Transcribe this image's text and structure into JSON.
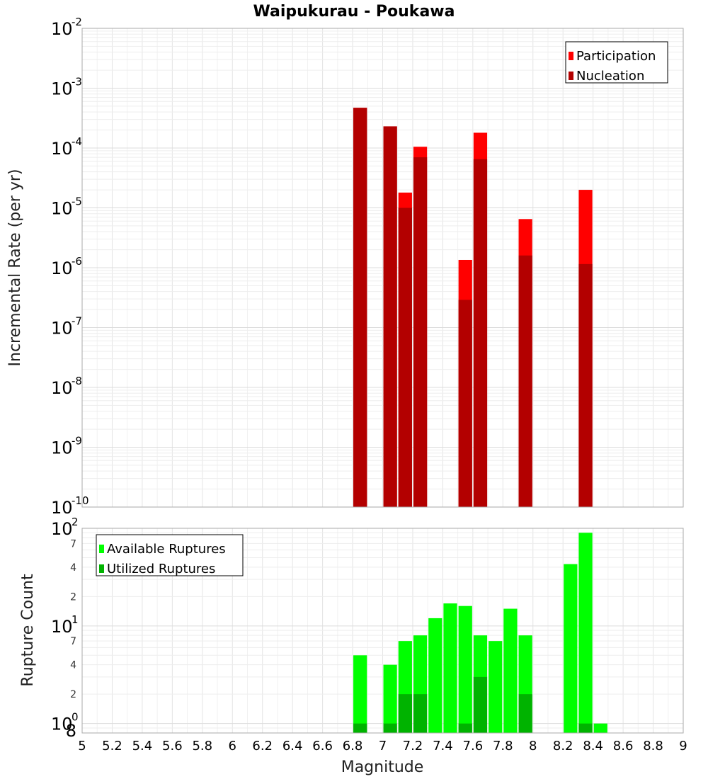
{
  "chart_data": [
    {
      "type": "bar",
      "title": "Waipukurau - Poukawa",
      "ylabel": "Incremental Rate (per yr)",
      "xlabel": "",
      "yscale": "log",
      "ylim": [
        1e-10,
        0.01
      ],
      "xlim": [
        5,
        9
      ],
      "grid": true,
      "legend_position": "top-right",
      "x": [
        6.85,
        7.05,
        7.15,
        7.25,
        7.55,
        7.65,
        7.95,
        8.35
      ],
      "series": [
        {
          "name": "Participation",
          "color": "#ff0000",
          "values": [
            0.00047,
            0.00023,
            1.8e-05,
            0.000105,
            1.35e-06,
            0.00018,
            6.5e-06,
            2e-05
          ]
        },
        {
          "name": "Nucleation",
          "color": "#b30000",
          "values": [
            0.00047,
            0.00023,
            1e-05,
            7e-05,
            2.9e-07,
            6.5e-05,
            1.6e-06,
            1.15e-06
          ]
        }
      ],
      "y_tick_exponents": [
        "-2",
        "-3",
        "-4",
        "-5",
        "-6",
        "-7",
        "-8",
        "-9",
        "-10"
      ]
    },
    {
      "type": "bar",
      "title": "",
      "ylabel": "Rupture Count",
      "xlabel": "Magnitude",
      "yscale": "log",
      "ylim": [
        0.8,
        100
      ],
      "xlim": [
        5,
        9
      ],
      "grid": true,
      "legend_position": "top-left",
      "x": [
        6.85,
        7.05,
        7.15,
        7.25,
        7.35,
        7.45,
        7.55,
        7.65,
        7.75,
        7.85,
        7.95,
        8.25,
        8.35,
        8.45
      ],
      "series": [
        {
          "name": "Available Ruptures",
          "color": "#00ff00",
          "values": [
            5,
            4,
            7,
            8,
            12,
            17,
            16,
            8,
            7,
            15,
            8,
            43,
            90,
            1
          ]
        },
        {
          "name": "Utilized Ruptures",
          "color": "#00b300",
          "values": [
            1,
            1,
            2,
            2,
            0,
            0,
            1,
            3,
            0,
            0,
            2,
            0,
            1,
            0
          ]
        }
      ],
      "y_tick_labels": {
        "major_base": "10",
        "major_exponents": [
          "2",
          "1",
          "0"
        ],
        "minor": [
          "7",
          "4",
          "2",
          "7",
          "4",
          "2",
          "8"
        ]
      },
      "x_tick_labels": [
        "5",
        "5.2",
        "5.4",
        "5.6",
        "5.8",
        "6",
        "6.2",
        "6.4",
        "6.6",
        "6.8",
        "7",
        "7.2",
        "7.4",
        "7.6",
        "7.8",
        "8",
        "8.2",
        "8.4",
        "8.6",
        "8.8",
        "9"
      ]
    }
  ]
}
